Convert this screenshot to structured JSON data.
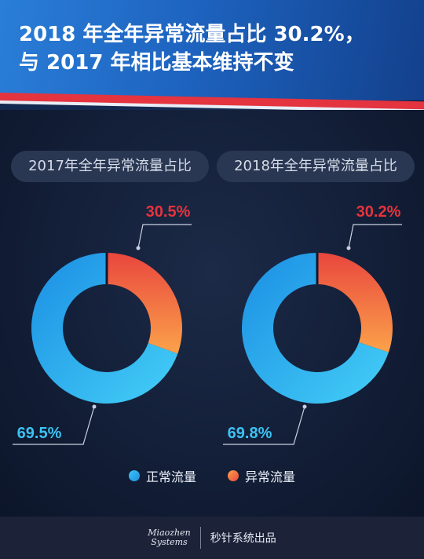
{
  "header": {
    "title_line1": "2018 年全年异常流量占比 30.2%，",
    "title_line2": "与 2017 年相比基本维持不变"
  },
  "colors": {
    "normal": "#2fb2ee",
    "abnormal": "#f1653f",
    "label_red": "#e8333c",
    "label_blue": "#3bc3f3"
  },
  "chart_data": [
    {
      "type": "pie",
      "title": "2017年全年异常流量占比",
      "slices": [
        {
          "name": "异常流量",
          "value": 30.5,
          "label": "30.5%"
        },
        {
          "name": "正常流量",
          "value": 69.5,
          "label": "69.5%"
        }
      ]
    },
    {
      "type": "pie",
      "title": "2018年全年异常流量占比",
      "slices": [
        {
          "name": "异常流量",
          "value": 30.2,
          "label": "30.2%"
        },
        {
          "name": "正常流量",
          "value": 69.8,
          "label": "69.8%"
        }
      ]
    }
  ],
  "legend": {
    "normal": "正常流量",
    "abnormal": "异常流量"
  },
  "footer": {
    "brand_line1": "Miaozhen",
    "brand_line2": "Systems",
    "text": "秒针系统出品"
  }
}
